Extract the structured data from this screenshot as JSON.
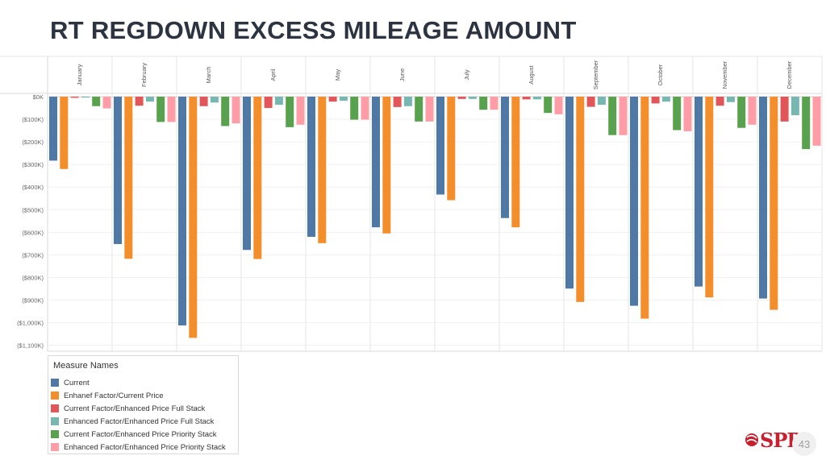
{
  "slide": {
    "title": "RT REGDOWN EXCESS MILEAGE AMOUNT",
    "page_number": "43",
    "logo_text": "SPP"
  },
  "legend": {
    "title": "Measure Names"
  },
  "chart_data": {
    "type": "bar",
    "title": "RT REGDOWN EXCESS MILEAGE AMOUNT",
    "xlabel": "",
    "ylabel": "",
    "categories": [
      "January",
      "February",
      "March",
      "April",
      "May",
      "June",
      "July",
      "August",
      "September",
      "October",
      "November",
      "December"
    ],
    "y_ticks": [
      0,
      -100,
      -200,
      -300,
      -400,
      -500,
      -600,
      -700,
      -800,
      -900,
      -1000,
      -1100
    ],
    "y_tick_labels": [
      "$0K",
      "($100K)",
      "($200K)",
      "($300K)",
      "($400K)",
      "($500K)",
      "($600K)",
      "($700K)",
      "($800K)",
      "($900K)",
      "($1,000K)",
      "($1,100K)"
    ],
    "ylim": [
      -1130,
      20
    ],
    "unit": "$K",
    "series": [
      {
        "name": "Current",
        "color": "#4e79a7",
        "values": [
          -283,
          -652,
          -1012,
          -678,
          -620,
          -578,
          -433,
          -537,
          -849,
          -925,
          -840,
          -893
        ]
      },
      {
        "name": "Enhanef Factor/Current Price",
        "color": "#f28e2b",
        "values": [
          -320,
          -717,
          -1067,
          -718,
          -648,
          -605,
          -458,
          -578,
          -908,
          -982,
          -888,
          -943
        ]
      },
      {
        "name": "Current Factor/Enhanced Price Full Stack",
        "color": "#e15759",
        "values": [
          -5,
          -40,
          -42,
          -50,
          -22,
          -46,
          -10,
          -12,
          -45,
          -30,
          -40,
          -110
        ]
      },
      {
        "name": "Enhanced Factor/Enhanced Price Full Stack",
        "color": "#76b7b2",
        "values": [
          -4,
          -22,
          -26,
          -36,
          -18,
          -42,
          -10,
          -12,
          -36,
          -22,
          -24,
          -82
        ]
      },
      {
        "name": "Current Factor/Enhanced Price Priority Stack",
        "color": "#59a14f",
        "values": [
          -42,
          -112,
          -130,
          -135,
          -102,
          -110,
          -58,
          -72,
          -170,
          -148,
          -138,
          -232
        ]
      },
      {
        "name": "Enhanced Factor/Enhanced Price Priority Stack",
        "color": "#ff9da7",
        "values": [
          -52,
          -112,
          -118,
          -124,
          -102,
          -110,
          -58,
          -78,
          -170,
          -153,
          -124,
          -217
        ]
      }
    ]
  }
}
